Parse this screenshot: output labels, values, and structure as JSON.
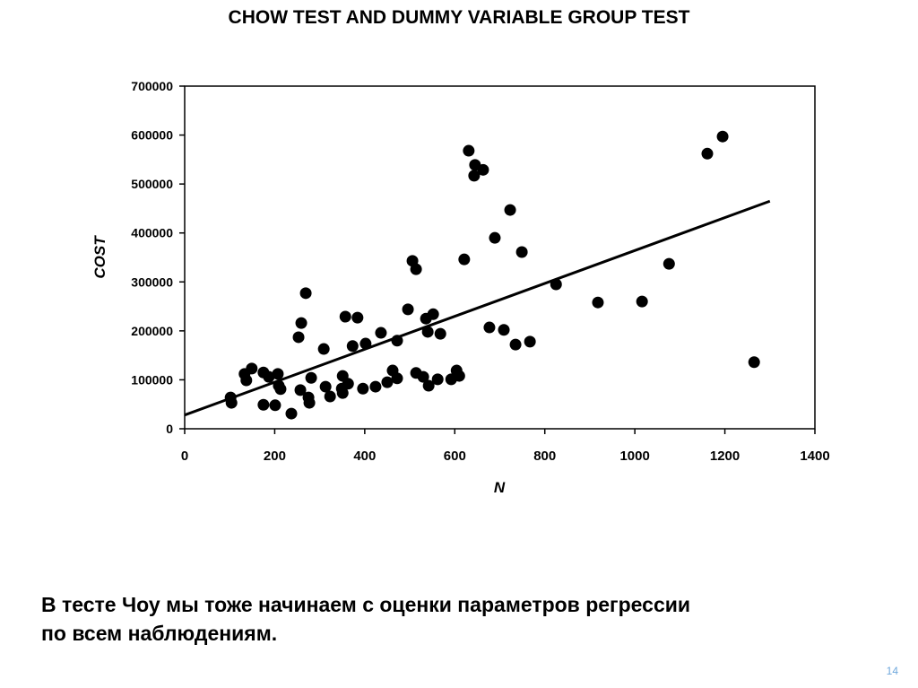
{
  "slide": {
    "caption_line1": "В тесте Чоу мы тоже начинаем с оценки параметров регрессии",
    "caption_line2": "по всем наблюдениям.",
    "page_number": "14"
  },
  "chart_data": {
    "type": "scatter",
    "title": "CHOW TEST AND DUMMY VARIABLE GROUP TEST",
    "xlabel": "N",
    "ylabel": "COST",
    "xlim": [
      0,
      1400
    ],
    "ylim": [
      0,
      700000
    ],
    "xticks": [
      "0",
      "200",
      "400",
      "600",
      "800",
      "1000",
      "1200",
      "1400"
    ],
    "yticks": [
      "0",
      "100000",
      "200000",
      "300000",
      "400000",
      "500000",
      "600000",
      "700000"
    ],
    "grid": false,
    "points": [
      [
        102,
        64000
      ],
      [
        104,
        53000
      ],
      [
        133,
        112000
      ],
      [
        137,
        99000
      ],
      [
        149,
        123000
      ],
      [
        175,
        115000
      ],
      [
        175,
        49000
      ],
      [
        187,
        106000
      ],
      [
        201,
        48000
      ],
      [
        207,
        112000
      ],
      [
        209,
        88000
      ],
      [
        213,
        81000
      ],
      [
        237,
        31000
      ],
      [
        253,
        187000
      ],
      [
        259,
        216000
      ],
      [
        269,
        277000
      ],
      [
        257,
        79000
      ],
      [
        275,
        64000
      ],
      [
        277,
        53000
      ],
      [
        281,
        104000
      ],
      [
        309,
        163000
      ],
      [
        313,
        86000
      ],
      [
        323,
        66000
      ],
      [
        349,
        82000
      ],
      [
        351,
        108000
      ],
      [
        351,
        73000
      ],
      [
        357,
        229000
      ],
      [
        363,
        92000
      ],
      [
        373,
        169000
      ],
      [
        384,
        227000
      ],
      [
        396,
        82000
      ],
      [
        402,
        174000
      ],
      [
        424,
        86000
      ],
      [
        436,
        196000
      ],
      [
        450,
        95000
      ],
      [
        462,
        119000
      ],
      [
        472,
        103000
      ],
      [
        472,
        180000
      ],
      [
        496,
        244000
      ],
      [
        506,
        343000
      ],
      [
        514,
        326000
      ],
      [
        514,
        114000
      ],
      [
        530,
        106000
      ],
      [
        536,
        225000
      ],
      [
        542,
        88000
      ],
      [
        540,
        198000
      ],
      [
        552,
        234000
      ],
      [
        562,
        101000
      ],
      [
        568,
        194000
      ],
      [
        592,
        101000
      ],
      [
        604,
        119000
      ],
      [
        610,
        108000
      ],
      [
        621,
        346000
      ],
      [
        631,
        568000
      ],
      [
        645,
        539000
      ],
      [
        643,
        517000
      ],
      [
        663,
        529000
      ],
      [
        677,
        207000
      ],
      [
        689,
        390000
      ],
      [
        709,
        202000
      ],
      [
        723,
        447000
      ],
      [
        735,
        172000
      ],
      [
        749,
        361000
      ],
      [
        767,
        178000
      ],
      [
        825,
        295000
      ],
      [
        918,
        258000
      ],
      [
        1016,
        260000
      ],
      [
        1076,
        337000
      ],
      [
        1161,
        562000
      ],
      [
        1195,
        597000
      ],
      [
        1265,
        136000
      ]
    ],
    "regression_line": [
      [
        0,
        28000
      ],
      [
        1300,
        465000
      ]
    ]
  }
}
